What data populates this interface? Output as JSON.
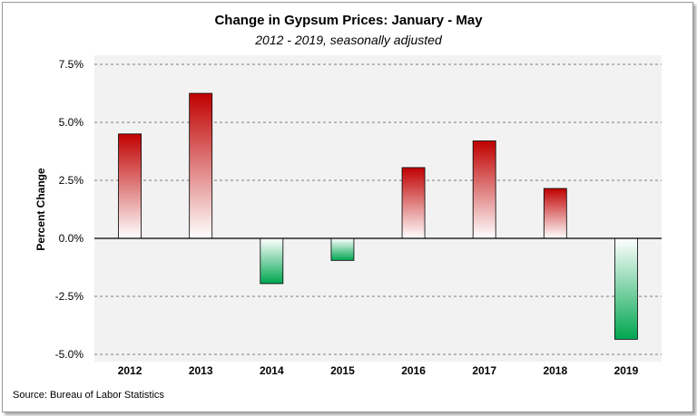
{
  "chart_data": {
    "type": "bar",
    "title": "Change in Gypsum Prices: January - May",
    "subtitle": "2012 - 2019, seasonally adjusted",
    "xlabel": "",
    "ylabel": "Percent Change",
    "categories": [
      "2012",
      "2013",
      "2014",
      "2015",
      "2016",
      "2017",
      "2018",
      "2019"
    ],
    "values": [
      4.5,
      6.25,
      -1.95,
      -0.95,
      3.05,
      4.2,
      2.15,
      -4.35
    ],
    "ylim": [
      -5.0,
      7.5
    ],
    "yticks": [
      -5.0,
      -2.5,
      0.0,
      2.5,
      5.0,
      7.5
    ],
    "ytick_labels": [
      "-5.0%",
      "-2.5%",
      "0.0%",
      "2.5%",
      "5.0%",
      "7.5%"
    ],
    "grid": "horizontal dashed",
    "legend": "none",
    "colors": {
      "positive": "#c00000",
      "negative": "#00a650",
      "fade": "#ffffff",
      "plot_bg": "#f2f2f2"
    }
  },
  "source": "Source:  Bureau of Labor Statistics"
}
